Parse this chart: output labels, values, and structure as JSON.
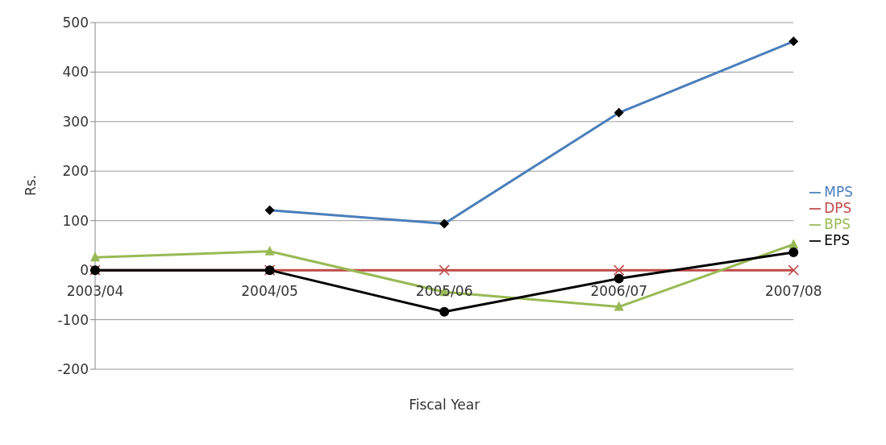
{
  "chart_data": {
    "type": "line",
    "xlabel": "Fiscal Year",
    "ylabel": "Rs.",
    "categories": [
      "2003/04",
      "2004/05",
      "2005/06",
      "2006/07",
      "2007/08"
    ],
    "series": [
      {
        "name": "MPS",
        "color": "#4a7ebb",
        "marker": "diamond",
        "values": [
          null,
          121,
          94,
          318,
          462
        ]
      },
      {
        "name": "DPS",
        "color": "#be4b48",
        "marker": "cross",
        "values": [
          0,
          0,
          0,
          0,
          0
        ]
      },
      {
        "name": "BPS",
        "color": "#98b954",
        "marker": "triangle",
        "values": [
          26,
          38,
          -44,
          -74,
          52
        ]
      },
      {
        "name": "EPS",
        "color": "#000000",
        "marker": "circle",
        "values": [
          0,
          0,
          -84,
          -17,
          36
        ]
      }
    ],
    "ylim": [
      -200,
      500
    ],
    "yticks": [
      -200,
      -100,
      0,
      100,
      200,
      300,
      400,
      500
    ],
    "grid": "y",
    "legend": "right"
  }
}
